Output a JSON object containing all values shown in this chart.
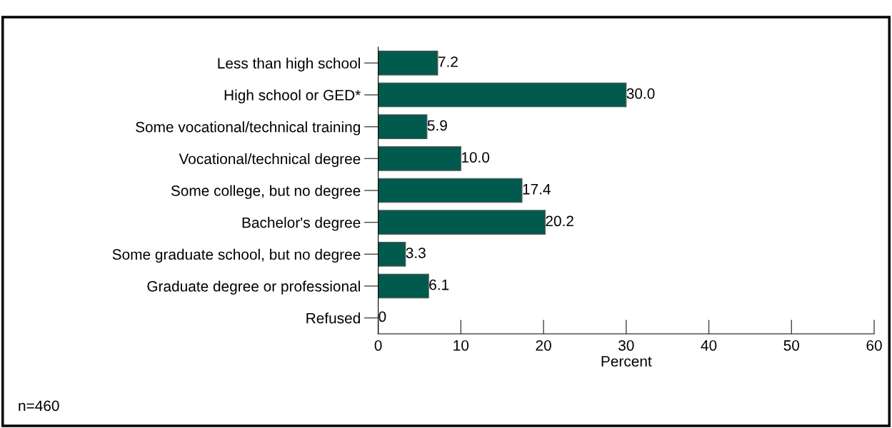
{
  "chart_data": {
    "type": "bar",
    "orientation": "horizontal",
    "categories": [
      "Less than high school",
      "High school or GED*",
      "Some vocational/technical training",
      "Vocational/technical degree",
      "Some college, but no degree",
      "Bachelor's degree",
      "Some graduate school, but no degree",
      "Graduate degree or professional",
      "Refused"
    ],
    "values": [
      7.2,
      30.0,
      5.9,
      10.0,
      17.4,
      20.2,
      3.3,
      6.1,
      0
    ],
    "value_labels": [
      "7.2",
      "30.0",
      "5.9",
      "10.0",
      "17.4",
      "20.2",
      "3.3",
      "6.1",
      "0"
    ],
    "color": "#005a4e",
    "xlabel": "Percent",
    "xlim": [
      0,
      60
    ],
    "xticks": [
      0,
      10,
      20,
      30,
      40,
      50,
      60
    ],
    "grid": false,
    "legend": false,
    "annotations": [
      "n=460"
    ]
  }
}
